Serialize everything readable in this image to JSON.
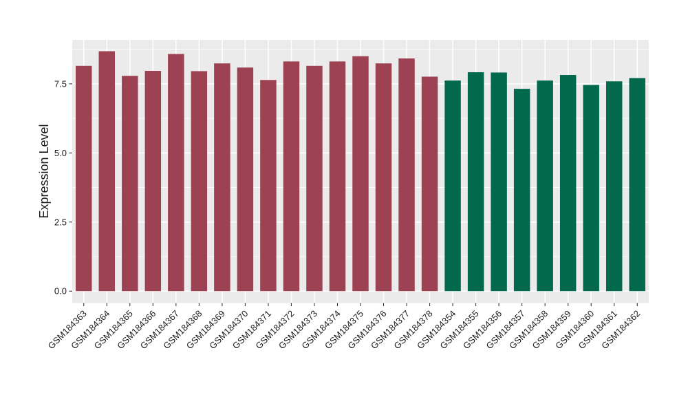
{
  "figure": {
    "background": "#ffffff",
    "panel_background": "#EBEBEB",
    "grid_color": "#FFFFFF",
    "axis_text_color": "#1a1a1a",
    "tick_mark_color": "#333333"
  },
  "chart_data": {
    "type": "bar",
    "title": "",
    "xlabel": "",
    "ylabel": "Expression Level",
    "legend": "none",
    "grid": true,
    "categories": [
      "GSM184363",
      "GSM184364",
      "GSM184365",
      "GSM184366",
      "GSM184367",
      "GSM184368",
      "GSM184369",
      "GSM184370",
      "GSM184371",
      "GSM184372",
      "GSM184373",
      "GSM184374",
      "GSM184375",
      "GSM184376",
      "GSM184377",
      "GSM184378",
      "GSM184354",
      "GSM184355",
      "GSM184356",
      "GSM184357",
      "GSM184358",
      "GSM184359",
      "GSM184360",
      "GSM184361",
      "GSM184362"
    ],
    "values": [
      8.15,
      8.68,
      7.79,
      7.97,
      8.58,
      7.96,
      8.24,
      8.09,
      7.64,
      8.31,
      8.15,
      8.31,
      8.5,
      8.24,
      8.42,
      7.76,
      7.62,
      7.92,
      7.91,
      7.32,
      7.62,
      7.82,
      7.46,
      7.59,
      7.71
    ],
    "groups": [
      "A",
      "A",
      "A",
      "A",
      "A",
      "A",
      "A",
      "A",
      "A",
      "A",
      "A",
      "A",
      "A",
      "A",
      "A",
      "A",
      "B",
      "B",
      "B",
      "B",
      "B",
      "B",
      "B",
      "B",
      "B"
    ],
    "group_colors": {
      "A": "#9C4252",
      "B": "#02694D"
    },
    "y_ticks": [
      0.0,
      2.5,
      5.0,
      7.5
    ],
    "y_tick_labels": [
      "0.0",
      "2.5",
      "5.0",
      "7.5"
    ],
    "y_minor_ticks": [
      1.25,
      3.75,
      6.25,
      8.75
    ],
    "ylim": [
      -0.43,
      9.09
    ],
    "bar_width_fraction": 0.7,
    "x_label_rotation_deg": -45
  }
}
